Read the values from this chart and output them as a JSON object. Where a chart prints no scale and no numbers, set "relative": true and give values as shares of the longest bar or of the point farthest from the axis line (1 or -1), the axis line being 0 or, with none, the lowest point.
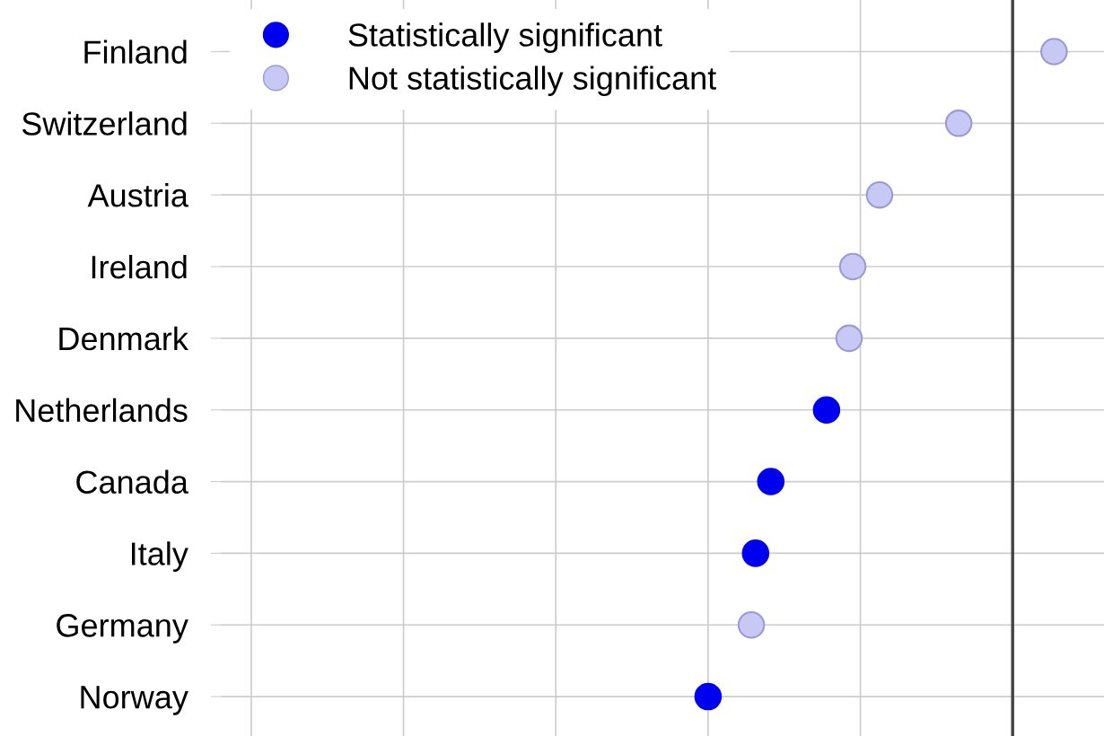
{
  "chart_data": {
    "type": "scatter",
    "orientation": "horizontal",
    "relative": true,
    "categories": [
      "Finland",
      "Switzerland",
      "Austria",
      "Ireland",
      "Denmark",
      "Netherlands",
      "Canada",
      "Italy",
      "Germany",
      "Norway"
    ],
    "series": [
      {
        "name": "Statistically significant",
        "color": "#0000ee",
        "values": [
          null,
          null,
          null,
          null,
          null,
          -0.611,
          -0.794,
          -0.844,
          null,
          -1
        ]
      },
      {
        "name": "Not statistically significant",
        "color": "#c8c8f4",
        "values": [
          0.136,
          -0.177,
          -0.437,
          -0.525,
          -0.537,
          null,
          null,
          null,
          -0.858,
          null
        ]
      }
    ],
    "ref_lines": [
      {
        "axis": "x",
        "value": 0,
        "color": "#444444"
      }
    ],
    "grid": true,
    "legend": "top left",
    "marker": "circle"
  }
}
